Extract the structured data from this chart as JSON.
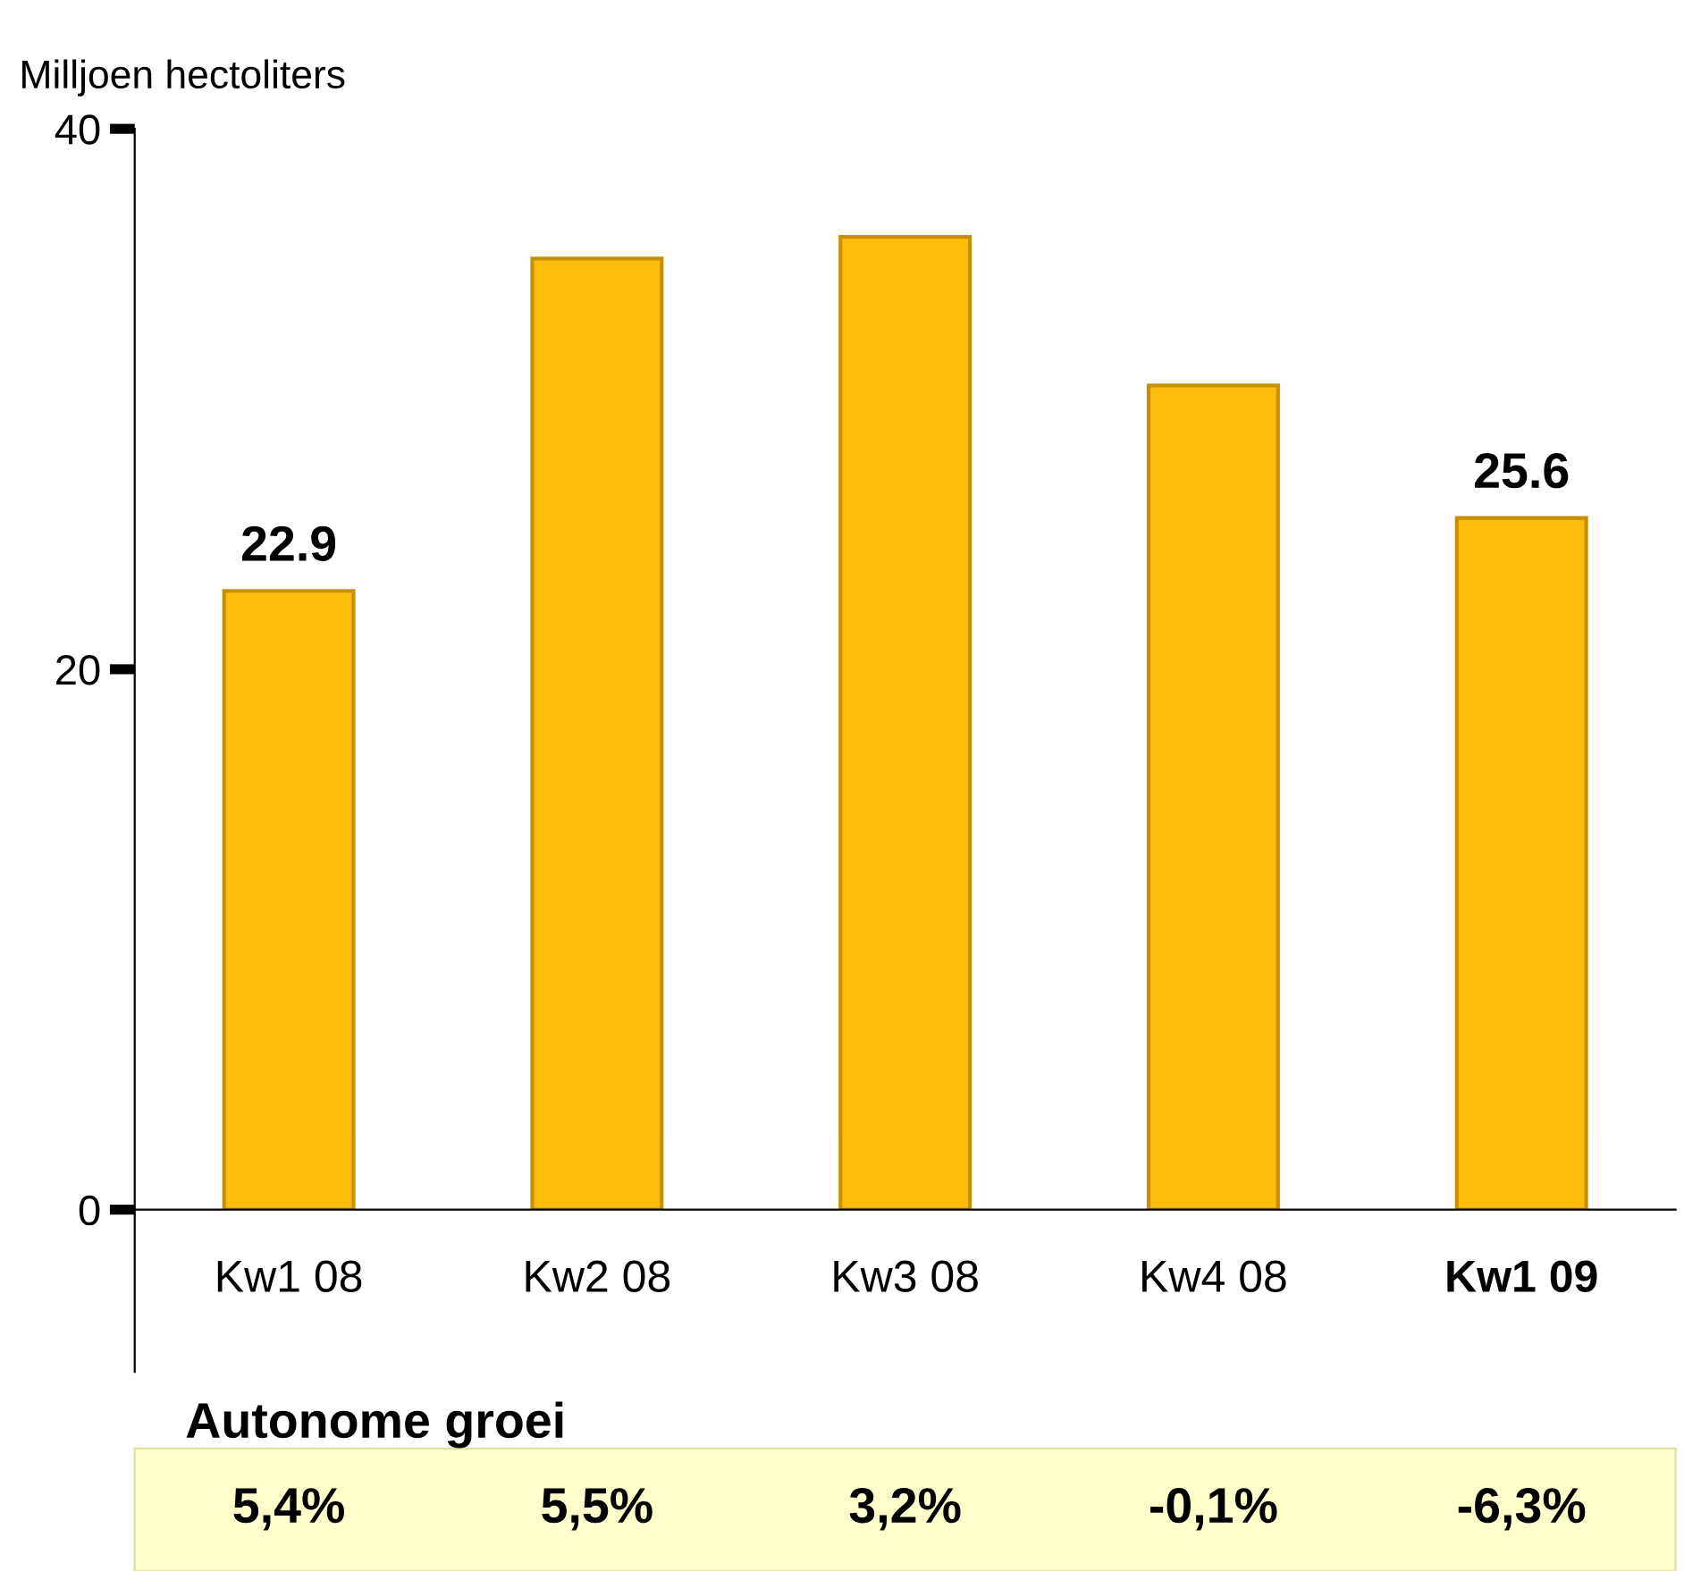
{
  "chart_data": {
    "type": "bar",
    "ylabel": "Milljoen hectoliters",
    "categories": [
      "Kw1 08",
      "Kw2 08",
      "Kw3 08",
      "Kw4 08",
      "Kw1 09"
    ],
    "values": [
      22.9,
      35.2,
      36.0,
      30.5,
      25.6
    ],
    "value_labels": [
      "22.9",
      null,
      null,
      null,
      "25.6"
    ],
    "color": "#fcbc0a",
    "ylim": [
      0,
      40
    ],
    "yticks": [
      0,
      20,
      40
    ],
    "grid": false,
    "legend": false,
    "annotations": [
      "Autonome groei",
      "5,4%",
      "5,5%",
      "3,2%",
      "-0,1%",
      "-6,3%"
    ]
  }
}
